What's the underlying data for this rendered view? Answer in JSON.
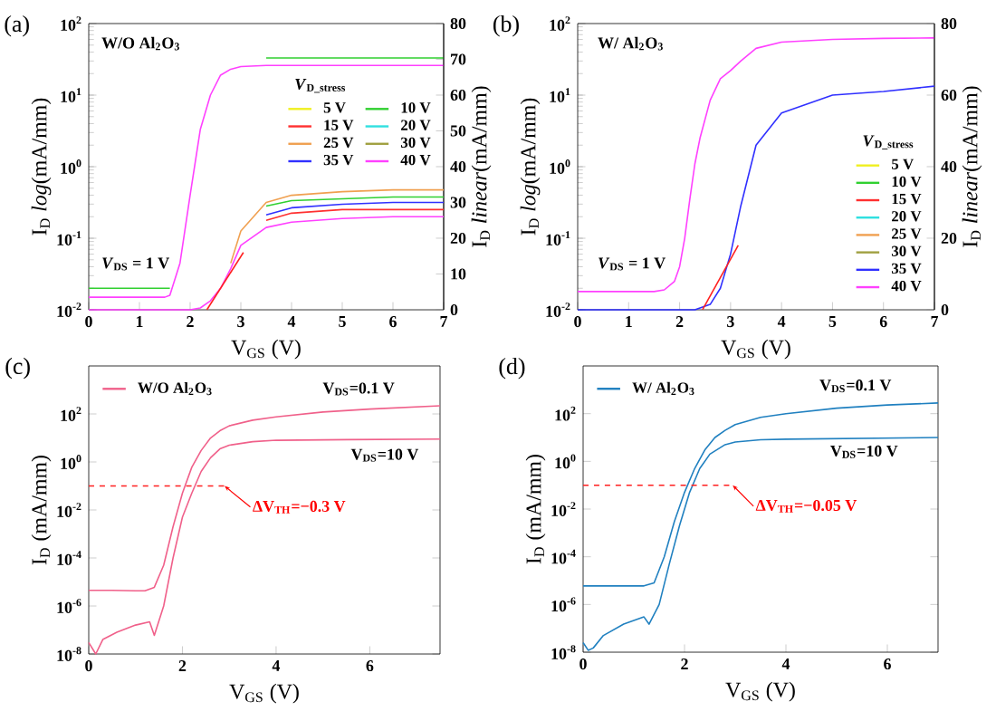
{
  "chart_data": [
    {
      "type": "line",
      "title": "(a)",
      "xlabel": "V$_{GS}$ (V)",
      "ylabel": "I$_{D}$ *log*(mA/mm)",
      "y2label": "I$_{D}$ *linear*(mA/mm)",
      "legend_title": "*V*$_{D_stress}$",
      "legend": "right",
      "log": "y",
      "xlim": [
        0,
        7
      ],
      "xticks": [
        0,
        1,
        2,
        3,
        4,
        5,
        6,
        7
      ],
      "ylim": [
        0.01,
        100
      ],
      "yticks": [
        {
          "value": 0.01,
          "label": "10$^{-2}$"
        },
        {
          "value": 0.1,
          "label": "10$^{-1}$"
        },
        {
          "value": 1,
          "label": "10$^{0}$"
        },
        {
          "value": 10,
          "label": "10$^{1}$"
        },
        {
          "value": 100,
          "label": "10$^{2}$"
        }
      ],
      "y2lim": [
        0,
        80
      ],
      "y2ticks": [
        0,
        10,
        20,
        30,
        40,
        50,
        60,
        70,
        80
      ],
      "annotations": [
        "W/O Al$_{2}$O$_{3}$",
        "*V*$_{DS}$ = 1 V"
      ],
      "x": [
        0,
        0.5,
        1,
        1.5,
        1.6,
        1.8,
        2,
        2.2,
        2.4,
        2.6,
        2.8,
        3,
        3.5,
        4,
        5,
        6,
        7
      ],
      "series": [
        {
          "name": "5 V",
          "color": "#f0f020",
          "values": [
            null,
            null,
            null,
            null,
            null,
            null,
            null,
            null,
            null,
            null,
            null,
            null,
            null,
            null,
            null,
            null,
            null
          ]
        },
        {
          "name": "10 V",
          "color": "#30d030",
          "values": [
            0.02,
            0.02,
            0.02,
            0.02,
            0.02,
            null,
            null,
            null,
            null,
            null,
            null,
            null,
            33,
            33,
            33,
            33,
            33
          ]
        },
        {
          "name": "15 V",
          "color": "#ff3030",
          "values": [
            null,
            null,
            null,
            null,
            null,
            null,
            null,
            null,
            null,
            null,
            null,
            null,
            null,
            null,
            null,
            null,
            null
          ]
        },
        {
          "name": "20 V",
          "color": "#30e0e0",
          "values": [
            null,
            null,
            null,
            null,
            null,
            null,
            null,
            null,
            null,
            null,
            null,
            null,
            null,
            null,
            null,
            null,
            null
          ]
        },
        {
          "name": "25 V",
          "color": "#f0a050",
          "values": [
            null,
            null,
            null,
            null,
            null,
            null,
            null,
            null,
            null,
            null,
            null,
            null,
            null,
            null,
            null,
            null,
            null
          ]
        },
        {
          "name": "30 V",
          "color": "#a0a040",
          "values": [
            null,
            null,
            null,
            null,
            null,
            null,
            null,
            null,
            null,
            null,
            null,
            null,
            null,
            null,
            null,
            null,
            null
          ]
        },
        {
          "name": "35 V",
          "color": "#3030ff",
          "values": [
            null,
            null,
            null,
            null,
            null,
            null,
            null,
            null,
            null,
            null,
            null,
            null,
            null,
            null,
            null,
            null,
            null
          ]
        },
        {
          "name": "40 V",
          "color": "#ff40ff",
          "values": [
            0.015,
            0.015,
            0.015,
            0.015,
            0.016,
            0.045,
            0.4,
            3.3,
            10,
            19,
            23,
            25,
            26,
            26,
            26,
            26,
            26
          ]
        },
        {
          "axis": "y2",
          "color": "#f0f020",
          "values": [
            null,
            null,
            null,
            null,
            null,
            null,
            null,
            null,
            null,
            null,
            null,
            null,
            null,
            null,
            null,
            null,
            null
          ]
        },
        {
          "axis": "y2",
          "color": "#30d030",
          "values": [
            null,
            null,
            null,
            null,
            null,
            null,
            null,
            null,
            null,
            null,
            null,
            null,
            29,
            30.5,
            31,
            31.5,
            31.5
          ]
        },
        {
          "axis": "y2",
          "color": "#ff3030",
          "values": [
            null,
            null,
            null,
            null,
            null,
            null,
            null,
            null,
            null,
            null,
            null,
            null,
            25,
            27,
            28,
            28,
            28
          ]
        },
        {
          "axis": "y2",
          "color": "#30e0e0",
          "values": [
            null,
            null,
            null,
            null,
            null,
            null,
            null,
            null,
            null,
            null,
            null,
            null,
            null,
            null,
            null,
            null,
            null
          ]
        },
        {
          "axis": "y2",
          "color": "#f0a050",
          "values": [
            null,
            null,
            null,
            null,
            null,
            null,
            null,
            null,
            null,
            null,
            13,
            22,
            30,
            32,
            33,
            33.5,
            33.5
          ]
        },
        {
          "axis": "y2",
          "color": "#a0a040",
          "values": [
            null,
            null,
            null,
            null,
            null,
            null,
            null,
            null,
            null,
            null,
            null,
            null,
            null,
            null,
            null,
            null,
            null
          ]
        },
        {
          "axis": "y2",
          "color": "#3030ff",
          "values": [
            null,
            null,
            null,
            null,
            null,
            null,
            null,
            null,
            null,
            null,
            null,
            null,
            26.5,
            28.5,
            29.5,
            30,
            30
          ]
        },
        {
          "axis": "y2",
          "color": "#ff40ff",
          "values": [
            0,
            0,
            0,
            0,
            0,
            0,
            0,
            0.5,
            2.5,
            6,
            11.5,
            18,
            23,
            24.5,
            25.5,
            26,
            26
          ]
        },
        {
          "axis": "y2",
          "type": "line",
          "color": "#ff2020",
          "x": [
            2.33,
            3.05
          ],
          "values": [
            0,
            16
          ]
        }
      ]
    },
    {
      "type": "line",
      "title": "(b)",
      "xlabel": "V$_{GS}$ (V)",
      "ylabel": "I$_{D}$ *log*(mA/mm)",
      "y2label": "I$_{D}$ *linear*(mA/mm)",
      "legend_title": "*V*$_{D_stress}$",
      "legend": "bottom right",
      "log": "y",
      "xlim": [
        0,
        7
      ],
      "xticks": [
        0,
        1,
        2,
        3,
        4,
        5,
        6,
        7
      ],
      "ylim": [
        0.01,
        100
      ],
      "yticks": [
        {
          "value": 0.01,
          "label": "10$^{-2}$"
        },
        {
          "value": 0.1,
          "label": "10$^{-1}$"
        },
        {
          "value": 1,
          "label": "10$^{0}$"
        },
        {
          "value": 10,
          "label": "10$^{1}$"
        },
        {
          "value": 100,
          "label": "10$^{2}$"
        }
      ],
      "y2lim": [
        0,
        80
      ],
      "y2ticks": [
        0,
        20,
        40,
        60,
        80
      ],
      "annotations": [
        "W/ Al$_{2}$O$_{3}$",
        "*V*$_{DS}$ = 1 V"
      ],
      "x": [
        0,
        0.5,
        1,
        1.5,
        1.7,
        1.9,
        2,
        2.1,
        2.2,
        2.3,
        2.4,
        2.6,
        2.8,
        3,
        3.2,
        3.5,
        4,
        5,
        6,
        7
      ],
      "series": [
        {
          "name": "5 V",
          "color": "#f0f020",
          "values": [
            null,
            null,
            null,
            null,
            null,
            null,
            null,
            null,
            null,
            null,
            null,
            null,
            null,
            null,
            null,
            null,
            null,
            null,
            null,
            null
          ]
        },
        {
          "name": "10 V",
          "color": "#30d030",
          "values": [
            null,
            null,
            null,
            null,
            null,
            null,
            null,
            null,
            null,
            null,
            null,
            null,
            null,
            null,
            null,
            null,
            null,
            null,
            null,
            null
          ]
        },
        {
          "name": "15 V",
          "color": "#ff3030",
          "values": [
            null,
            null,
            null,
            null,
            null,
            null,
            null,
            null,
            null,
            null,
            null,
            null,
            null,
            null,
            null,
            null,
            null,
            null,
            null,
            null
          ]
        },
        {
          "name": "20 V",
          "color": "#30e0e0",
          "values": [
            null,
            null,
            null,
            null,
            null,
            null,
            null,
            null,
            null,
            null,
            null,
            null,
            null,
            null,
            null,
            null,
            null,
            null,
            null,
            null
          ]
        },
        {
          "name": "25 V",
          "color": "#f0a050",
          "values": [
            null,
            null,
            null,
            null,
            null,
            null,
            null,
            null,
            null,
            null,
            null,
            null,
            null,
            null,
            null,
            null,
            null,
            null,
            null,
            null
          ]
        },
        {
          "name": "30 V",
          "color": "#a0a040",
          "values": [
            null,
            null,
            null,
            null,
            null,
            null,
            null,
            null,
            null,
            null,
            null,
            null,
            null,
            null,
            null,
            null,
            null,
            null,
            null,
            null
          ]
        },
        {
          "name": "35 V",
          "color": "#3030ff",
          "values": [
            null,
            null,
            null,
            null,
            null,
            null,
            null,
            null,
            null,
            null,
            null,
            null,
            null,
            null,
            null,
            null,
            null,
            null,
            null,
            null
          ]
        },
        {
          "name": "40 V",
          "color": "#ff40ff",
          "values": [
            0.018,
            0.018,
            0.018,
            0.018,
            0.019,
            0.025,
            0.04,
            0.1,
            0.35,
            1.1,
            2.5,
            8.5,
            17,
            22,
            30,
            45,
            55,
            60,
            62,
            63
          ]
        },
        {
          "axis": "y2",
          "color": "#3030ff",
          "values": [
            0,
            0,
            0,
            0,
            0,
            0,
            0,
            0,
            0,
            0,
            0.5,
            1.5,
            6,
            15.6,
            29,
            46,
            55,
            60,
            61,
            62.5
          ]
        },
        {
          "axis": "y2",
          "type": "line",
          "color": "#ff2020",
          "x": [
            2.45,
            3.15
          ],
          "values": [
            0,
            18
          ]
        }
      ]
    },
    {
      "type": "line",
      "title": "(c)",
      "xlabel": "V$_{GS}$ (V)",
      "ylabel": "I$_{D}$ (mA/mm)",
      "legend": "top left",
      "log": "y",
      "xlim": [
        0,
        7.5
      ],
      "xticks": [
        0,
        2,
        4,
        6
      ],
      "ylim": [
        1e-08,
        10000
      ],
      "yticks": [
        {
          "value": 1e-08,
          "label": "10$^{-8}$"
        },
        {
          "value": 1e-06,
          "label": "10$^{-6}$"
        },
        {
          "value": 0.0001,
          "label": "10$^{-4}$"
        },
        {
          "value": 0.01,
          "label": "10$^{-2}$"
        },
        {
          "value": 1,
          "label": "10$^{0}$"
        },
        {
          "value": 100,
          "label": "10$^{2}$"
        }
      ],
      "annotations": [
        "V$_{DS}$=0.1 V",
        "V$_{DS}$=10 V",
        "ΔV$_{TH}$=−0.3 V"
      ],
      "series": [
        {
          "name": "W/O Al$_{2}$O$_{3}$",
          "color": "#f0608a",
          "x": [
            0,
            0.5,
            1,
            1.2,
            1.4,
            1.6,
            1.8,
            2,
            2.2,
            2.4,
            2.6,
            2.8,
            3,
            3.5,
            4,
            5,
            6,
            7.5
          ],
          "values": [
            4.5e-06,
            4.5e-06,
            4.3e-06,
            4.3e-06,
            6e-06,
            5e-05,
            0.002,
            0.05,
            0.6,
            3,
            10,
            20,
            32,
            55,
            75,
            120,
            160,
            220
          ]
        },
        {
          "color": "#f0608a",
          "x": [
            0,
            0.15,
            0.3,
            0.6,
            1,
            1.3,
            1.4,
            1.6,
            1.8,
            2,
            2.2,
            2.4,
            2.6,
            2.8,
            3,
            3.5,
            4,
            5.5,
            7.5
          ],
          "values": [
            3e-08,
            1e-08,
            4e-08,
            8e-08,
            1.6e-07,
            2.2e-07,
            6e-08,
            1e-06,
            0.0001,
            0.005,
            0.05,
            0.4,
            1.5,
            3.5,
            5,
            7,
            8,
            8.5,
            9
          ]
        },
        {
          "color": "#ff2020",
          "line_style": "dashed",
          "x": [
            0,
            2.9
          ],
          "values": [
            0.1,
            0.1
          ]
        }
      ]
    },
    {
      "type": "line",
      "title": "(d)",
      "xlabel": "V$_{GS}$ (V)",
      "ylabel": "I$_{D}$ (mA/mm)",
      "legend": "top left",
      "log": "y",
      "xlim": [
        0,
        7
      ],
      "xticks": [
        0,
        2,
        4,
        6
      ],
      "ylim": [
        1e-08,
        10000
      ],
      "yticks": [
        {
          "value": 1e-08,
          "label": "10$^{-8}$"
        },
        {
          "value": 1e-06,
          "label": "10$^{-6}$"
        },
        {
          "value": 0.0001,
          "label": "10$^{-4}$"
        },
        {
          "value": 0.01,
          "label": "10$^{-2}$"
        },
        {
          "value": 1,
          "label": "10$^{0}$"
        },
        {
          "value": 100,
          "label": "10$^{2}$"
        }
      ],
      "annotations": [
        "V$_{DS}$=0.1 V",
        "V$_{DS}$=10 V",
        "ΔV$_{TH}$=−0.05 V"
      ],
      "series": [
        {
          "name": "W/ Al$_{2}$O$_{3}$",
          "color": "#2080c0",
          "x": [
            0,
            0.5,
            1,
            1.2,
            1.4,
            1.6,
            1.8,
            2,
            2.2,
            2.4,
            2.6,
            2.8,
            3,
            3.5,
            4,
            5,
            6,
            7
          ],
          "values": [
            6e-06,
            6e-06,
            6e-06,
            6e-06,
            8e-06,
            0.0001,
            0.003,
            0.05,
            0.5,
            3,
            10,
            20,
            35,
            70,
            100,
            170,
            230,
            280
          ]
        },
        {
          "color": "#2080c0",
          "x": [
            0,
            0.1,
            0.2,
            0.4,
            0.8,
            1.2,
            1.3,
            1.5,
            1.7,
            1.9,
            2.1,
            2.3,
            2.5,
            2.8,
            3,
            3.5,
            4,
            7
          ],
          "values": [
            2.5e-08,
            1.2e-08,
            1.5e-08,
            5e-08,
            1.5e-07,
            3e-07,
            1.5e-07,
            1e-06,
            5e-05,
            0.002,
            0.05,
            0.5,
            2,
            5,
            6.5,
            8,
            8.5,
            10
          ]
        },
        {
          "color": "#ff2020",
          "line_style": "dashed",
          "x": [
            0,
            2.95
          ],
          "values": [
            0.1,
            0.1
          ]
        }
      ]
    }
  ]
}
